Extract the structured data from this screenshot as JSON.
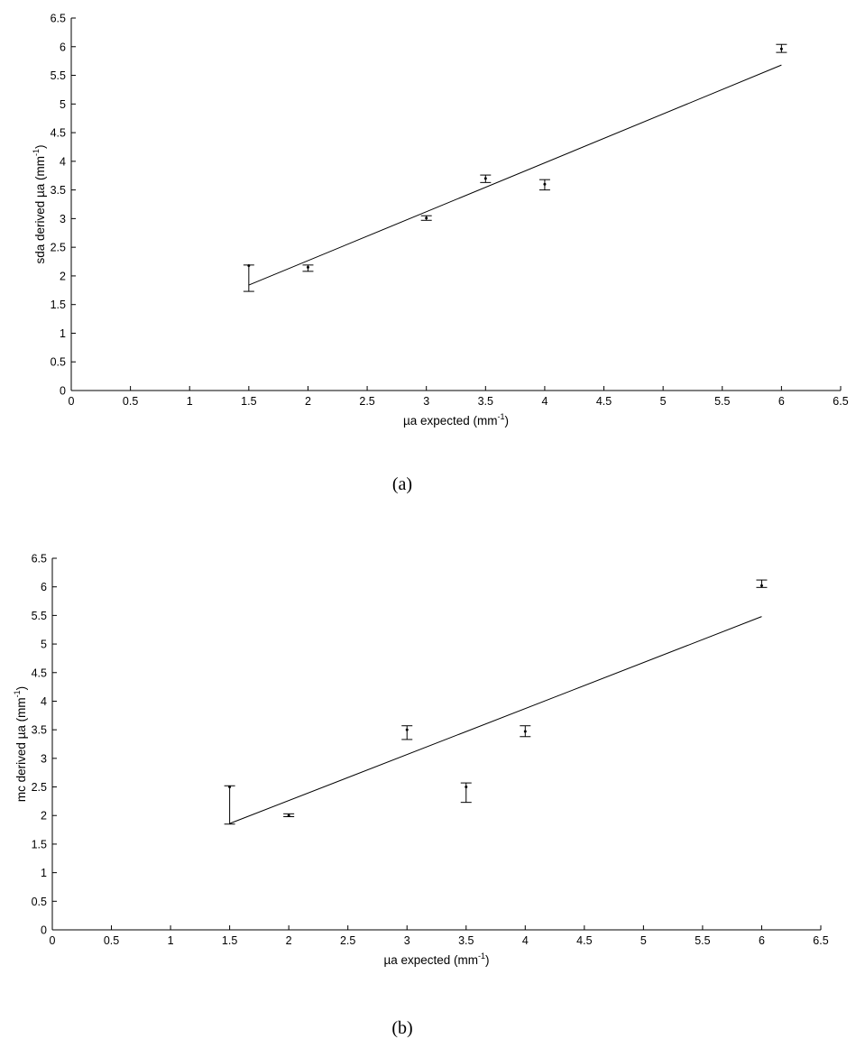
{
  "chart_data": [
    {
      "type": "scatter",
      "panel_label": "(a)",
      "xlabel": {
        "prefix": "µa expected (mm",
        "sup": "-1",
        "suffix": ")"
      },
      "ylabel": {
        "prefix": "sda derived µa (mm",
        "sup": "-1",
        "suffix": ")"
      },
      "xlim": [
        0,
        6.5
      ],
      "ylim": [
        0,
        6.5
      ],
      "xticks": [
        "0",
        "0.5",
        "1",
        "1.5",
        "2",
        "2.5",
        "3",
        "3.5",
        "4",
        "4.5",
        "5",
        "5.5",
        "6",
        "6.5"
      ],
      "yticks": [
        "0",
        "0.5",
        "1",
        "1.5",
        "2",
        "2.5",
        "3",
        "3.5",
        "4",
        "4.5",
        "5",
        "5.5",
        "6",
        "6.5"
      ],
      "grid": false,
      "points": [
        {
          "x": 1.5,
          "y": 2.18,
          "lo": 1.73,
          "hi": 2.19
        },
        {
          "x": 2.0,
          "y": 2.15,
          "lo": 2.08,
          "hi": 2.19
        },
        {
          "x": 3.0,
          "y": 3.01,
          "lo": 2.97,
          "hi": 3.05
        },
        {
          "x": 3.5,
          "y": 3.7,
          "lo": 3.63,
          "hi": 3.76
        },
        {
          "x": 4.0,
          "y": 3.6,
          "lo": 3.5,
          "hi": 3.68
        },
        {
          "x": 6.0,
          "y": 5.96,
          "lo": 5.9,
          "hi": 6.04
        }
      ],
      "fit_line": {
        "x": [
          1.5,
          6.0
        ],
        "y": [
          1.84,
          5.68
        ]
      }
    },
    {
      "type": "scatter",
      "panel_label": "(b)",
      "xlabel": {
        "prefix": "µa expected (mm",
        "sup": "-1",
        "suffix": ")"
      },
      "ylabel": {
        "prefix": "mc derived µa (mm",
        "sup": "-1",
        "suffix": ")"
      },
      "xlim": [
        0,
        6.5
      ],
      "ylim": [
        0,
        6.5
      ],
      "xticks": [
        "0",
        "0.5",
        "1",
        "1.5",
        "2",
        "2.5",
        "3",
        "3.5",
        "4",
        "4.5",
        "5",
        "5.5",
        "6",
        "6.5"
      ],
      "yticks": [
        "0",
        "0.5",
        "1",
        "1.5",
        "2",
        "2.5",
        "3",
        "3.5",
        "4",
        "4.5",
        "5",
        "5.5",
        "6",
        "6.5"
      ],
      "grid": false,
      "points": [
        {
          "x": 1.5,
          "y": 2.5,
          "lo": 1.85,
          "hi": 2.52
        },
        {
          "x": 2.0,
          "y": 2.0,
          "lo": 1.98,
          "hi": 2.03
        },
        {
          "x": 3.0,
          "y": 3.5,
          "lo": 3.33,
          "hi": 3.57
        },
        {
          "x": 3.5,
          "y": 2.5,
          "lo": 2.23,
          "hi": 2.57
        },
        {
          "x": 4.0,
          "y": 3.47,
          "lo": 3.38,
          "hi": 3.57
        },
        {
          "x": 6.0,
          "y": 6.02,
          "lo": 5.99,
          "hi": 6.12
        }
      ],
      "fit_line": {
        "x": [
          1.5,
          6.0
        ],
        "y": [
          1.86,
          5.48
        ]
      }
    }
  ]
}
